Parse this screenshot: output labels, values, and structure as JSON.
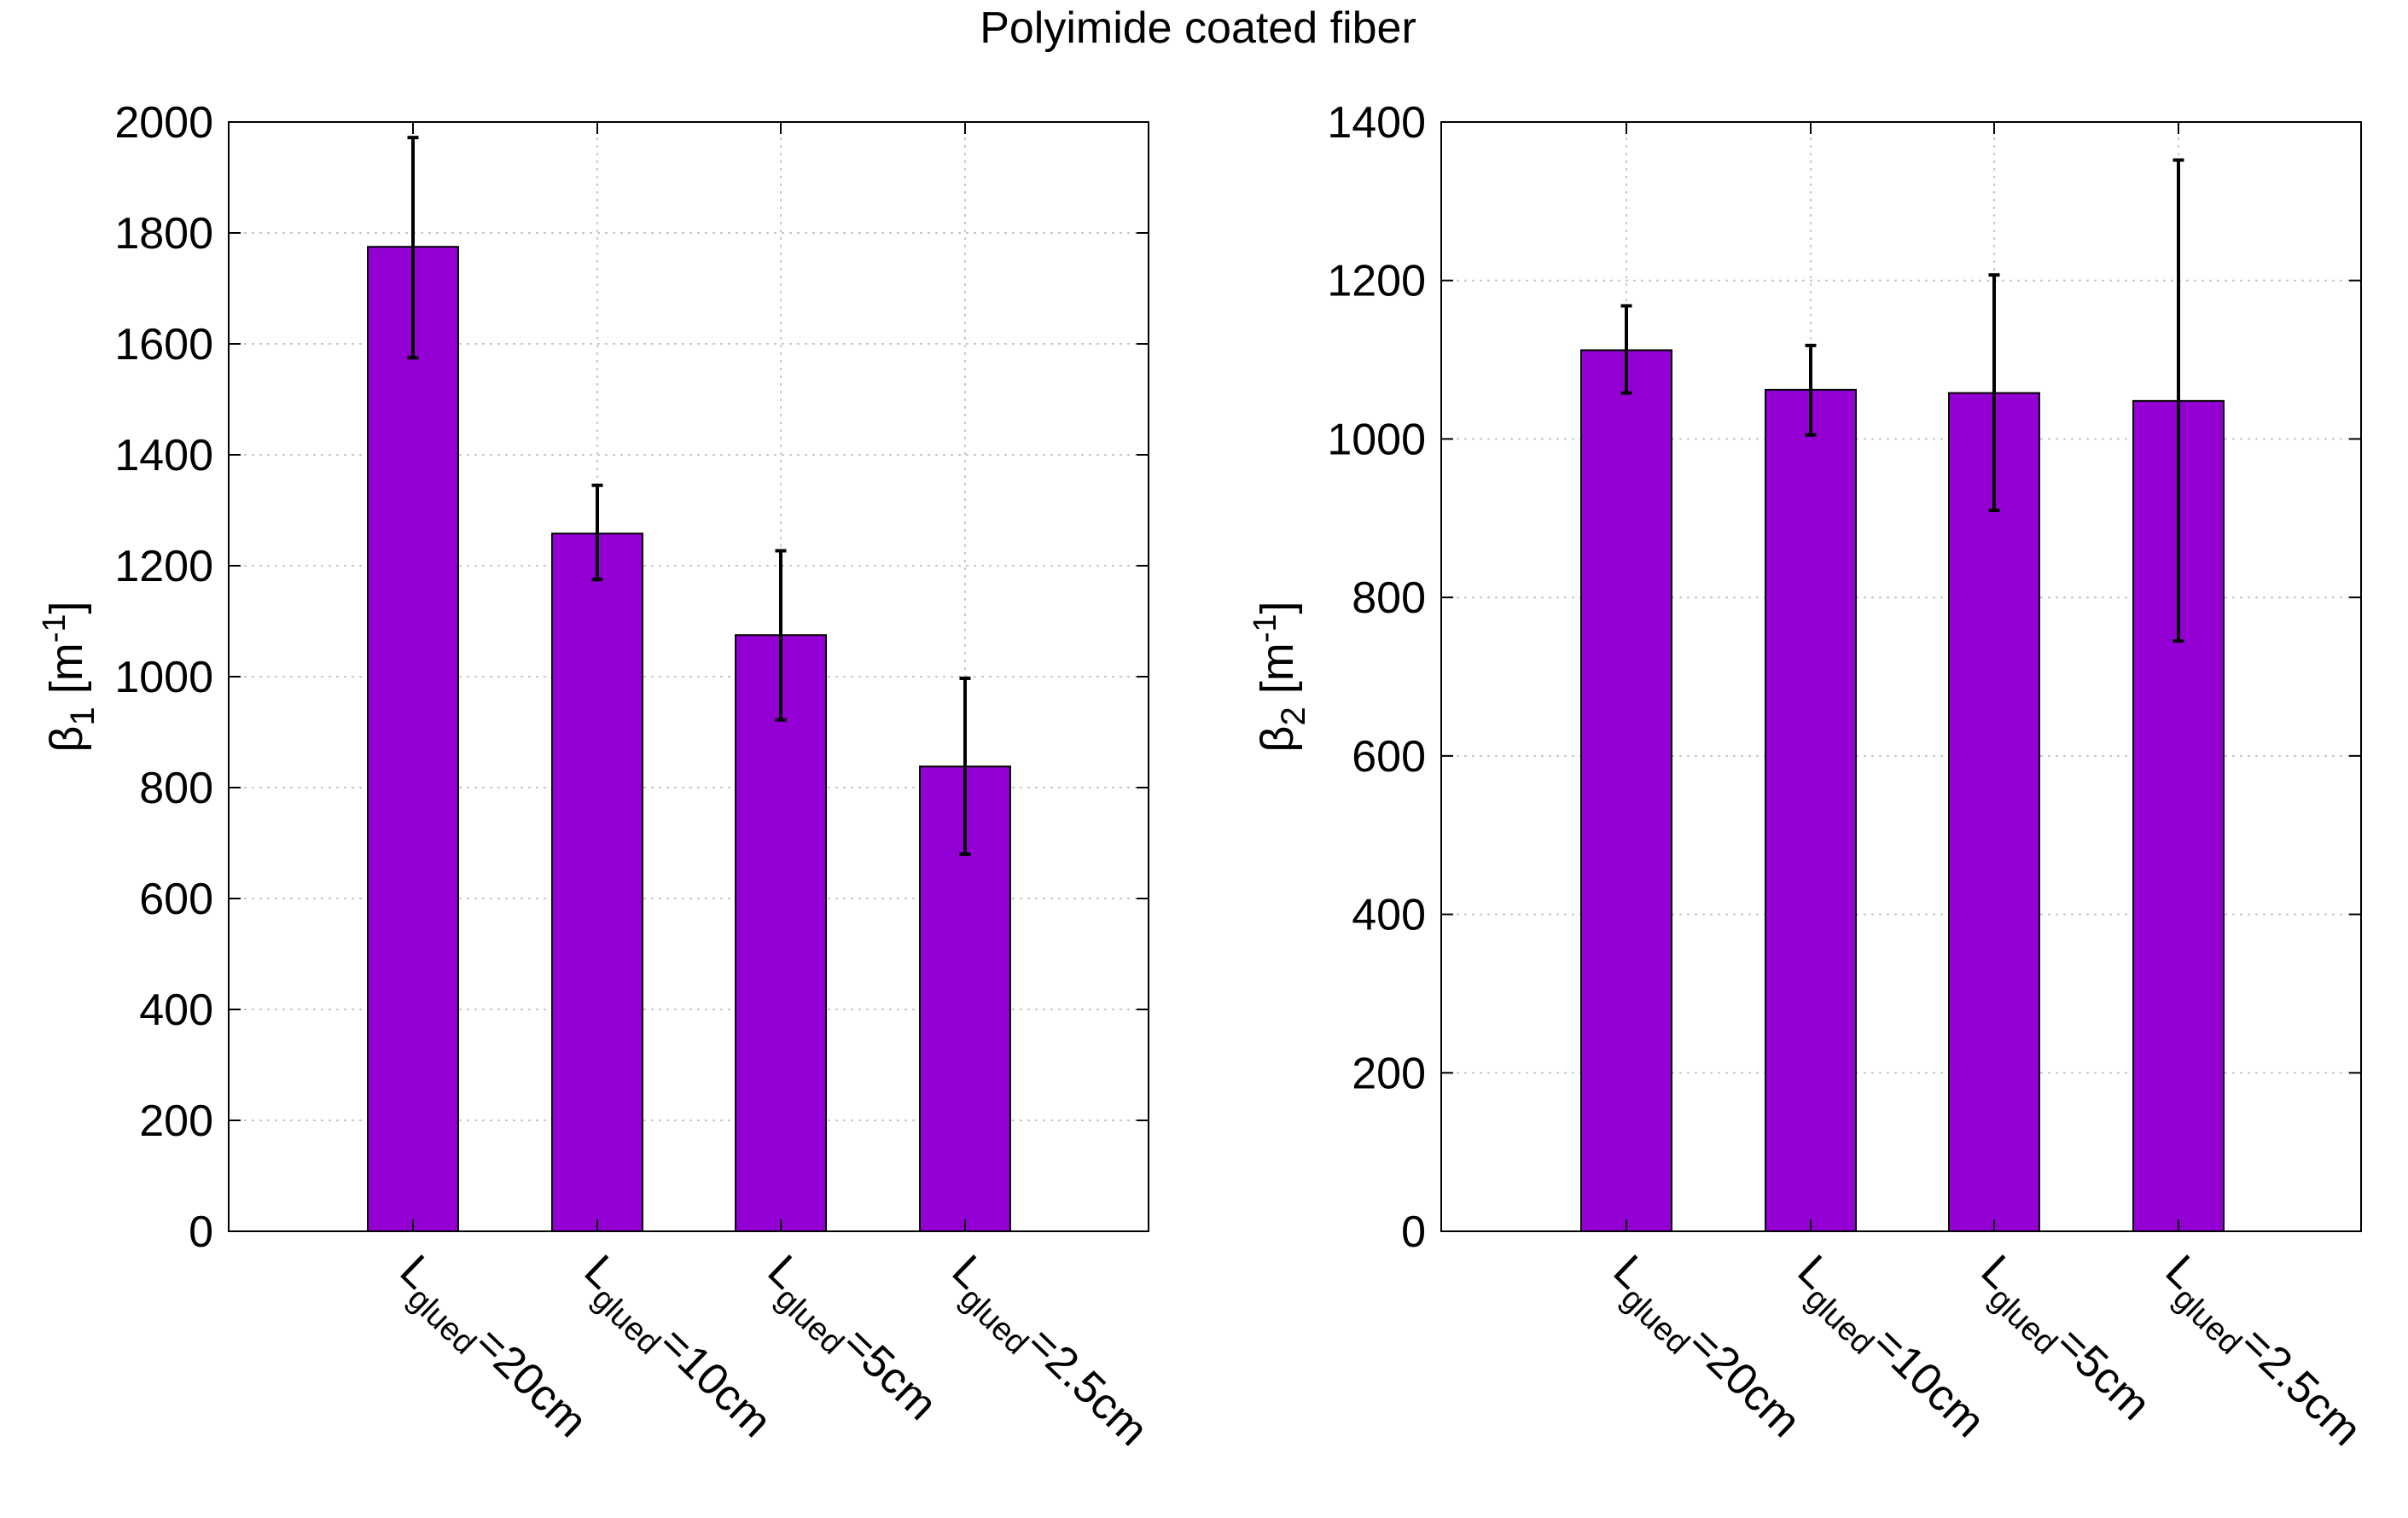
{
  "figure": {
    "title": "Polyimide coated fiber",
    "bar_color": "#9400D3",
    "error_color": "#000000",
    "grid_color": "#c8c8c8"
  },
  "chart_data": [
    {
      "type": "bar",
      "ylabel_base": "β",
      "ylabel_sub": "1",
      "ylabel_unit_open": " [m",
      "ylabel_sup": "-1",
      "ylabel_unit_close": "]",
      "ylim": [
        0,
        2000
      ],
      "yticks": [
        0,
        200,
        400,
        600,
        800,
        1000,
        1200,
        1400,
        1600,
        1800,
        2000
      ],
      "grid": true,
      "categories": [
        {
          "base": "L",
          "sub": "glued",
          "rest": "=20cm"
        },
        {
          "base": "L",
          "sub": "glued",
          "rest": "=10cm"
        },
        {
          "base": "L",
          "sub": "glued",
          "rest": "=5cm"
        },
        {
          "base": "L",
          "sub": "glued",
          "rest": "=2.5cm"
        }
      ],
      "values": [
        1775,
        1258,
        1075,
        838
      ],
      "err_low": [
        1575,
        1175,
        922,
        680
      ],
      "err_high": [
        1972,
        1345,
        1227,
        997
      ]
    },
    {
      "type": "bar",
      "ylabel_base": "β",
      "ylabel_sub": "2",
      "ylabel_unit_open": " [m",
      "ylabel_sup": "-1",
      "ylabel_unit_close": "]",
      "ylim": [
        0,
        1400
      ],
      "yticks": [
        0,
        200,
        400,
        600,
        800,
        1000,
        1200,
        1400
      ],
      "grid": true,
      "categories": [
        {
          "base": "L",
          "sub": "glued",
          "rest": "=20cm"
        },
        {
          "base": "L",
          "sub": "glued",
          "rest": "=10cm"
        },
        {
          "base": "L",
          "sub": "glued",
          "rest": "=5cm"
        },
        {
          "base": "L",
          "sub": "glued",
          "rest": "=2.5cm"
        }
      ],
      "values": [
        1112,
        1062,
        1058,
        1048
      ],
      "err_low": [
        1058,
        1005,
        910,
        745
      ],
      "err_high": [
        1168,
        1118,
        1207,
        1352
      ]
    }
  ]
}
